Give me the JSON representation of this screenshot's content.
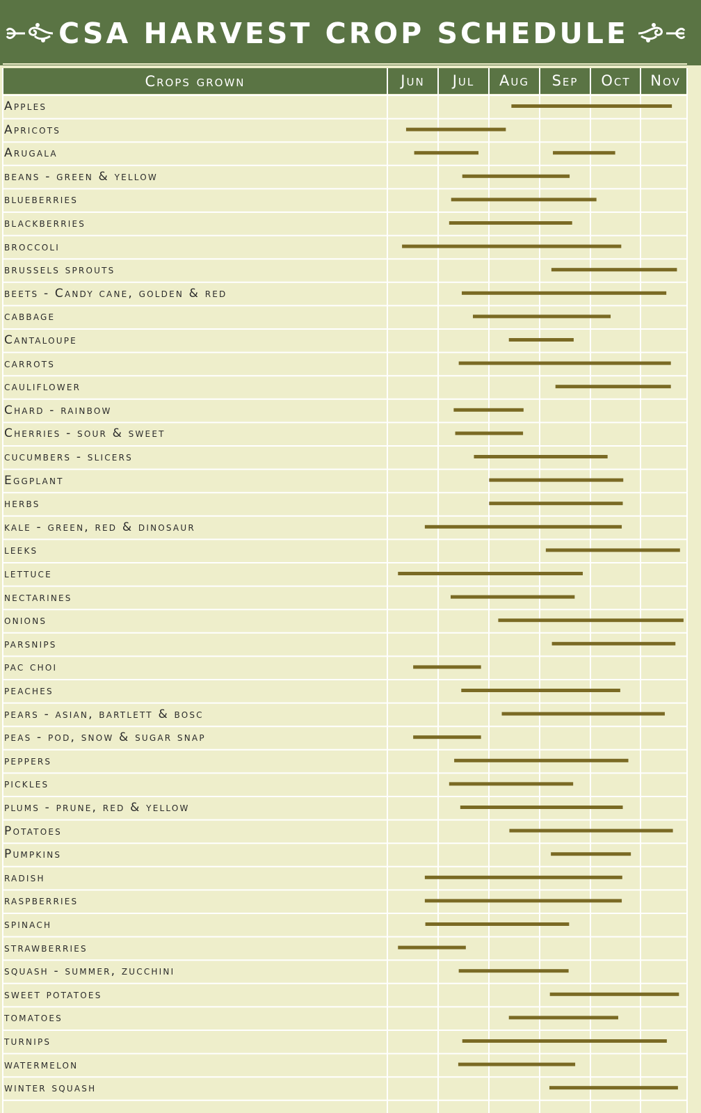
{
  "title": "CSA HARVEST CROP SCHEDULE",
  "colors": {
    "band": "#5a7444",
    "background": "#eeeecb",
    "bar": "#7a6a24",
    "grid_line": "#ffffff"
  },
  "icons": {
    "left": "floral-flourish-icon",
    "right": "floral-flourish-icon"
  },
  "chart_data": {
    "type": "gantt",
    "title": "CSA HARVEST CROP SCHEDULE",
    "category_header": "Crops grown",
    "months": [
      "Jun",
      "Jul",
      "Aug",
      "Sep",
      "Oct",
      "Nov"
    ],
    "x_unit": "month (Jun = 0 … Nov end = 6)",
    "grid": true,
    "crops": [
      {
        "name": "Apples",
        "start": 2.45,
        "end": 5.62
      },
      {
        "name": "Apricots",
        "start": 0.37,
        "end": 2.34
      },
      {
        "name": "Arugala",
        "start": 0.53,
        "end": 1.8
      },
      {
        "name": "Arugala",
        "start": 3.27,
        "end": 4.5
      },
      {
        "name": "beans - green & yellow",
        "start": 1.48,
        "end": 3.6
      },
      {
        "name": "blueberries",
        "start": 1.26,
        "end": 4.13
      },
      {
        "name": "blackberries",
        "start": 1.22,
        "end": 3.65
      },
      {
        "name": "broccoli",
        "start": 0.29,
        "end": 4.62
      },
      {
        "name": "brussels sprouts",
        "start": 3.24,
        "end": 5.72
      },
      {
        "name": "beets - Candy cane, golden & red",
        "start": 1.47,
        "end": 5.51
      },
      {
        "name": "cabbage",
        "start": 1.69,
        "end": 4.41
      },
      {
        "name": "Cantaloupe",
        "start": 2.4,
        "end": 3.68
      },
      {
        "name": "carrots",
        "start": 1.41,
        "end": 5.6
      },
      {
        "name": "cauliflower",
        "start": 3.32,
        "end": 5.6
      },
      {
        "name": "Chard - rainbow",
        "start": 1.31,
        "end": 2.69
      },
      {
        "name": "Cherries - sour & sweet",
        "start": 1.34,
        "end": 2.68
      },
      {
        "name": "cucumbers - slicers",
        "start": 1.71,
        "end": 4.35
      },
      {
        "name": "Eggplant",
        "start": 2.01,
        "end": 4.66
      },
      {
        "name": "herbs",
        "start": 2.01,
        "end": 4.65
      },
      {
        "name": "kale - green, red & dinosaur",
        "start": 0.74,
        "end": 4.63
      },
      {
        "name": "leeks",
        "start": 3.13,
        "end": 5.78
      },
      {
        "name": "lettuce",
        "start": 0.21,
        "end": 3.86
      },
      {
        "name": "nectarines",
        "start": 1.25,
        "end": 3.7
      },
      {
        "name": "onions",
        "start": 2.19,
        "end": 5.85
      },
      {
        "name": "parsnips",
        "start": 3.25,
        "end": 5.69
      },
      {
        "name": "pac choi",
        "start": 0.51,
        "end": 1.85
      },
      {
        "name": "peaches",
        "start": 1.46,
        "end": 4.6
      },
      {
        "name": "pears - asian, bartlett & bosc",
        "start": 2.26,
        "end": 5.48
      },
      {
        "name": "peas - pod, snow & sugar snap",
        "start": 0.51,
        "end": 1.85
      },
      {
        "name": "peppers",
        "start": 1.32,
        "end": 4.76
      },
      {
        "name": "pickles",
        "start": 1.22,
        "end": 3.67
      },
      {
        "name": "plums - prune, red & yellow",
        "start": 1.44,
        "end": 4.65
      },
      {
        "name": "Potatoes",
        "start": 2.41,
        "end": 5.64
      },
      {
        "name": "Pumpkins",
        "start": 3.23,
        "end": 4.81
      },
      {
        "name": "radish",
        "start": 0.74,
        "end": 4.64
      },
      {
        "name": "raspberries",
        "start": 0.74,
        "end": 4.63
      },
      {
        "name": "spinach",
        "start": 0.75,
        "end": 3.59
      },
      {
        "name": "strawberries",
        "start": 0.21,
        "end": 1.55
      },
      {
        "name": "squash - summer, zucchini",
        "start": 1.41,
        "end": 3.58
      },
      {
        "name": "sweet potatoes",
        "start": 3.21,
        "end": 5.76
      },
      {
        "name": "tomatoes",
        "start": 2.4,
        "end": 4.56
      },
      {
        "name": "turnips",
        "start": 1.48,
        "end": 5.52
      },
      {
        "name": "watermelon",
        "start": 1.4,
        "end": 3.71
      },
      {
        "name": "winter squash",
        "start": 3.2,
        "end": 5.74
      }
    ]
  }
}
